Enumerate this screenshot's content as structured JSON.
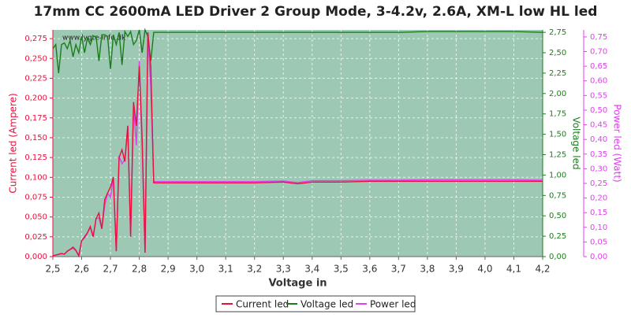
{
  "chart_data": {
    "type": "line",
    "title": "17mm CC 2600mA LED Driver 2 Group Mode, 3-4.2v, 2.6A, XM-L low HL led",
    "watermark": "www.lygte-info.dk",
    "x_label": "Voltage in",
    "y_label": "Current led (Ampere)",
    "y2_label": "Voltage led",
    "y3_label": "Power led (Watt)",
    "background": "#9cc8b4",
    "grid": true,
    "legend": "bottom",
    "xlim": [
      2.5,
      4.2
    ],
    "xticks": [
      {
        "value": 2.5,
        "label": "2,5"
      },
      {
        "value": 2.6,
        "label": "2,6"
      },
      {
        "value": 2.7,
        "label": "2,7"
      },
      {
        "value": 2.8,
        "label": "2,8"
      },
      {
        "value": 2.9,
        "label": "2,9"
      },
      {
        "value": 3.0,
        "label": "3,0"
      },
      {
        "value": 3.1,
        "label": "3,1"
      },
      {
        "value": 3.2,
        "label": "3,2"
      },
      {
        "value": 3.3,
        "label": "3,3"
      },
      {
        "value": 3.4,
        "label": "3,4"
      },
      {
        "value": 3.5,
        "label": "3,5"
      },
      {
        "value": 3.6,
        "label": "3,6"
      },
      {
        "value": 3.7,
        "label": "3,7"
      },
      {
        "value": 3.8,
        "label": "3,8"
      },
      {
        "value": 3.9,
        "label": "3,9"
      },
      {
        "value": 4.0,
        "label": "4,0"
      },
      {
        "value": 4.1,
        "label": "4,1"
      },
      {
        "value": 4.2,
        "label": "4,2"
      }
    ],
    "ylim": [
      0,
      0.286
    ],
    "yticks": [
      {
        "value": 0,
        "label": "0,000"
      },
      {
        "value": 0.025,
        "label": "0,025"
      },
      {
        "value": 0.05,
        "label": "0,050"
      },
      {
        "value": 0.075,
        "label": "0,075"
      },
      {
        "value": 0.1,
        "label": "0,100"
      },
      {
        "value": 0.125,
        "label": "0,125"
      },
      {
        "value": 0.15,
        "label": "0,150"
      },
      {
        "value": 0.175,
        "label": "0,175"
      },
      {
        "value": 0.2,
        "label": "0,200"
      },
      {
        "value": 0.225,
        "label": "0,225"
      },
      {
        "value": 0.25,
        "label": "0,250"
      },
      {
        "value": 0.275,
        "label": "0,275"
      }
    ],
    "y2lim": [
      0,
      2.78
    ],
    "y2ticks": [
      {
        "value": 0,
        "label": "0,00"
      },
      {
        "value": 0.25,
        "label": "0,25"
      },
      {
        "value": 0.5,
        "label": "0,50"
      },
      {
        "value": 0.75,
        "label": "0,75"
      },
      {
        "value": 1.0,
        "label": "1,00"
      },
      {
        "value": 1.25,
        "label": "1,25"
      },
      {
        "value": 1.5,
        "label": "1,50"
      },
      {
        "value": 1.75,
        "label": "1,75"
      },
      {
        "value": 2.0,
        "label": "2,00"
      },
      {
        "value": 2.25,
        "label": "2,25"
      },
      {
        "value": 2.5,
        "label": "2,50"
      },
      {
        "value": 2.75,
        "label": "2,75"
      }
    ],
    "y3lim": [
      0,
      0.774
    ],
    "y3ticks": [
      {
        "value": 0,
        "label": "0,00"
      },
      {
        "value": 0.05,
        "label": "0,05"
      },
      {
        "value": 0.1,
        "label": "0,10"
      },
      {
        "value": 0.15,
        "label": "0,15"
      },
      {
        "value": 0.2,
        "label": "0,20"
      },
      {
        "value": 0.25,
        "label": "0,25"
      },
      {
        "value": 0.3,
        "label": "0,30"
      },
      {
        "value": 0.35,
        "label": "0,35"
      },
      {
        "value": 0.4,
        "label": "0,40"
      },
      {
        "value": 0.45,
        "label": "0,45"
      },
      {
        "value": 0.5,
        "label": "0,50"
      },
      {
        "value": 0.55,
        "label": "0,55"
      },
      {
        "value": 0.6,
        "label": "0,60"
      },
      {
        "value": 0.65,
        "label": "0,65"
      },
      {
        "value": 0.7,
        "label": "0,70"
      },
      {
        "value": 0.75,
        "label": "0,75"
      }
    ],
    "x": [
      2.5,
      2.51,
      2.52,
      2.53,
      2.54,
      2.55,
      2.56,
      2.57,
      2.58,
      2.59,
      2.6,
      2.61,
      2.62,
      2.63,
      2.64,
      2.65,
      2.66,
      2.67,
      2.68,
      2.69,
      2.7,
      2.71,
      2.72,
      2.73,
      2.74,
      2.75,
      2.76,
      2.77,
      2.78,
      2.79,
      2.8,
      2.81,
      2.82,
      2.83,
      2.84,
      2.85,
      2.86,
      2.9,
      3.0,
      3.1,
      3.2,
      3.3,
      3.35,
      3.4,
      3.5,
      3.6,
      3.7,
      3.8,
      3.9,
      4.0,
      4.1,
      4.2
    ],
    "series": [
      {
        "name": "Voltage led",
        "color": "#1a7d1a",
        "axis": "y2",
        "values": [
          2.55,
          2.6,
          2.25,
          2.6,
          2.62,
          2.55,
          2.65,
          2.45,
          2.6,
          2.5,
          2.7,
          2.5,
          2.68,
          2.6,
          2.7,
          2.7,
          2.4,
          2.72,
          2.72,
          2.7,
          2.3,
          2.72,
          2.6,
          2.75,
          2.35,
          2.76,
          2.7,
          2.76,
          2.6,
          2.65,
          2.78,
          2.5,
          2.78,
          2.7,
          2.4,
          2.75,
          2.75,
          2.75,
          2.75,
          2.75,
          2.75,
          2.75,
          2.75,
          2.75,
          2.75,
          2.75,
          2.75,
          2.76,
          2.76,
          2.76,
          2.76,
          2.75
        ]
      },
      {
        "name": "Power led",
        "color": "#e23ef0",
        "axis": "y3",
        "values": [
          0.003,
          0.005,
          0.007,
          0.01,
          0.008,
          0.018,
          0.024,
          0.029,
          0.02,
          0.003,
          0.054,
          0.063,
          0.08,
          0.099,
          0.068,
          0.13,
          0.132,
          0.095,
          0.175,
          0.216,
          0.203,
          0.272,
          0.018,
          0.344,
          0.317,
          0.331,
          0.446,
          0.069,
          0.507,
          0.38,
          0.667,
          0.375,
          0.014,
          0.76,
          0.576,
          0.256,
          0.256,
          0.256,
          0.256,
          0.256,
          0.256,
          0.258,
          0.253,
          0.259,
          0.259,
          0.261,
          0.261,
          0.262,
          0.262,
          0.262,
          0.262,
          0.261
        ]
      },
      {
        "name": "Current led",
        "color": "#e8103c",
        "axis": "y",
        "values": [
          0.001,
          0.002,
          0.003,
          0.004,
          0.003,
          0.007,
          0.009,
          0.012,
          0.008,
          0.001,
          0.02,
          0.025,
          0.03,
          0.038,
          0.025,
          0.048,
          0.055,
          0.035,
          0.072,
          0.08,
          0.088,
          0.1,
          0.007,
          0.125,
          0.135,
          0.12,
          0.165,
          0.025,
          0.195,
          0.165,
          0.24,
          0.15,
          0.005,
          0.283,
          0.24,
          0.093,
          0.093,
          0.093,
          0.093,
          0.093,
          0.093,
          0.094,
          0.092,
          0.094,
          0.094,
          0.095,
          0.095,
          0.095,
          0.095,
          0.095,
          0.095,
          0.095
        ]
      }
    ]
  }
}
